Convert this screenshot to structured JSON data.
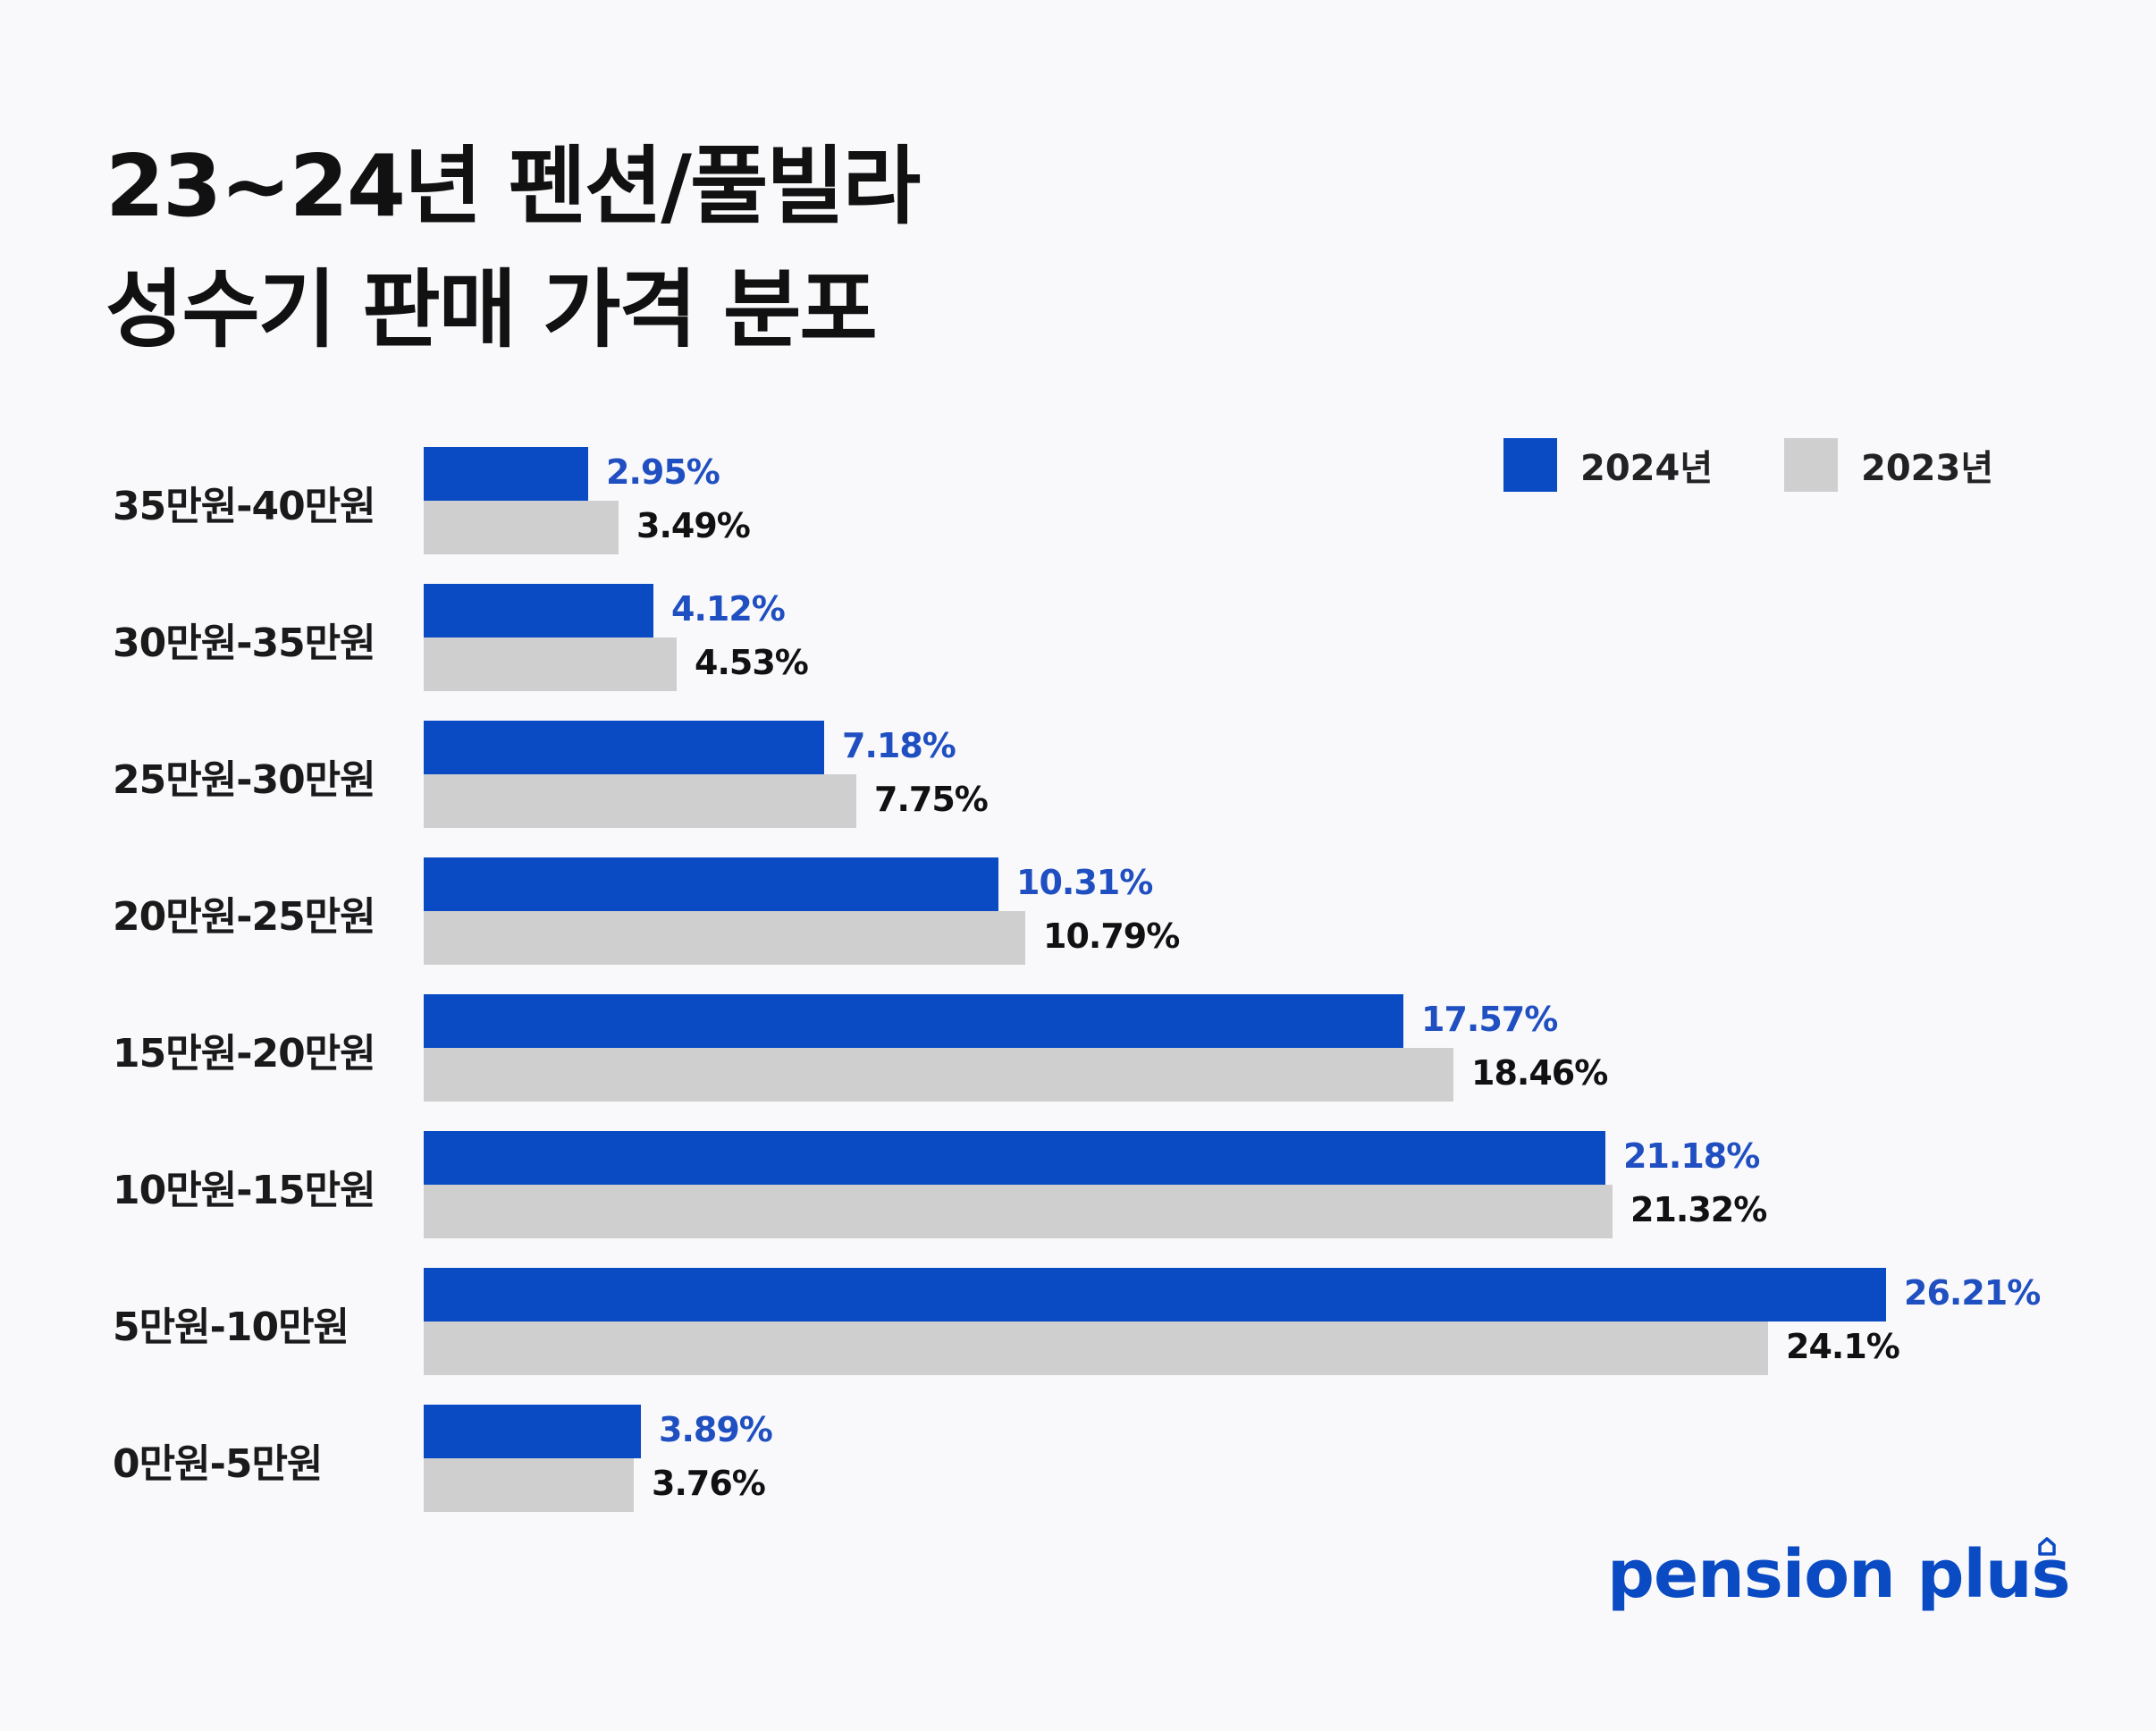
{
  "title": {
    "line1": "23~24년 펜션/풀빌라",
    "line2": "성수기 판매 가격 분포"
  },
  "legend": {
    "items": [
      {
        "label": "2024년",
        "color": "#0a4bc4"
      },
      {
        "label": "2023년",
        "color": "#cfcfcf"
      }
    ]
  },
  "brand": {
    "text": "pension plus",
    "icon": "house-icon"
  },
  "chart_data": {
    "type": "bar",
    "orientation": "horizontal",
    "categories": [
      "35만원-40만원",
      "30만원-35만원",
      "25만원-30만원",
      "20만원-25만원",
      "15만원-20만원",
      "10만원-15만원",
      "5만원-10만원",
      "0만원-5만원"
    ],
    "series": [
      {
        "name": "2024년",
        "color": "#0a4bc4",
        "label_color": "#1f4fc0",
        "values": [
          2.95,
          4.12,
          7.18,
          10.31,
          17.57,
          21.18,
          26.21,
          3.89
        ],
        "labels": [
          "2.95%",
          "4.12%",
          "7.18%",
          "10.31%",
          "17.57%",
          "21.18%",
          "26.21%",
          "3.89%"
        ]
      },
      {
        "name": "2023년",
        "color": "#cfcfcf",
        "label_color": "#111111",
        "values": [
          3.49,
          4.53,
          7.75,
          10.79,
          18.46,
          21.32,
          24.1,
          3.76
        ],
        "labels": [
          "3.49%",
          "4.53%",
          "7.75%",
          "10.79%",
          "18.46%",
          "21.32%",
          "24.1%",
          "3.76%"
        ]
      }
    ],
    "title": "23~24년 펜션/풀빌라 성수기 판매 가격 분포",
    "xlabel": "",
    "ylabel": "",
    "grid": false,
    "legend_position": "top-right"
  }
}
